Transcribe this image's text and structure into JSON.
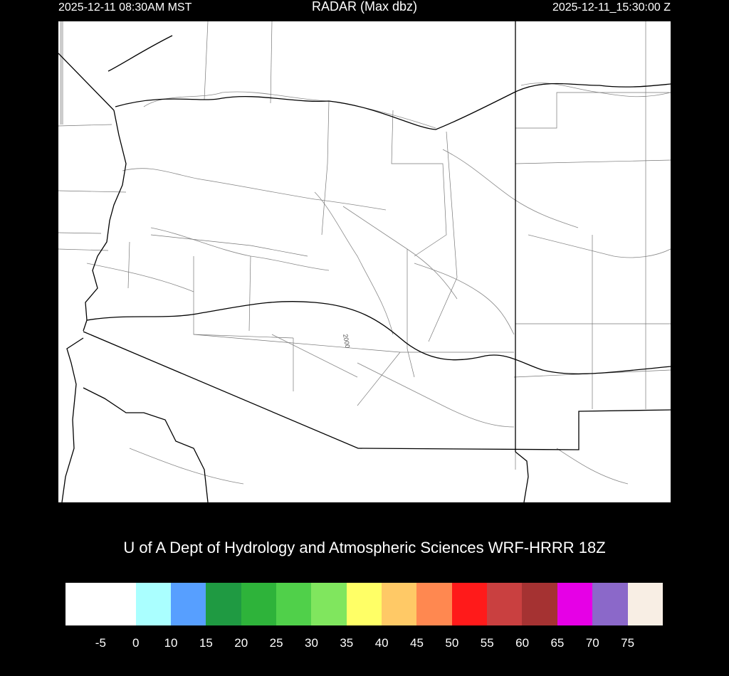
{
  "header": {
    "local_time": "2025-12-11 08:30AM MST",
    "title": "RADAR (Max dbz)",
    "utc_time": "2025-12-11_15:30:00 Z"
  },
  "map": {
    "contour_label": "2000",
    "colors": {
      "background": "#ffffff",
      "boundaries": "#000000",
      "contours": "#808080"
    }
  },
  "credit": "U of A Dept of Hydrology and Atmospheric Sciences WRF-HRRR 18Z",
  "colorbar": {
    "colors": [
      "#ffffff",
      "#aaffff",
      "#579fff",
      "#1f9a42",
      "#2eb33a",
      "#50d04a",
      "#80e65e",
      "#ffff66",
      "#ffc966",
      "#ff8850",
      "#ff1a1a",
      "#c94040",
      "#a53232",
      "#e600e6",
      "#8b68c9",
      "#f8eee4"
    ],
    "labels": [
      "-5",
      "0",
      "10",
      "15",
      "20",
      "25",
      "30",
      "35",
      "40",
      "45",
      "50",
      "55",
      "60",
      "65",
      "70",
      "75"
    ]
  }
}
